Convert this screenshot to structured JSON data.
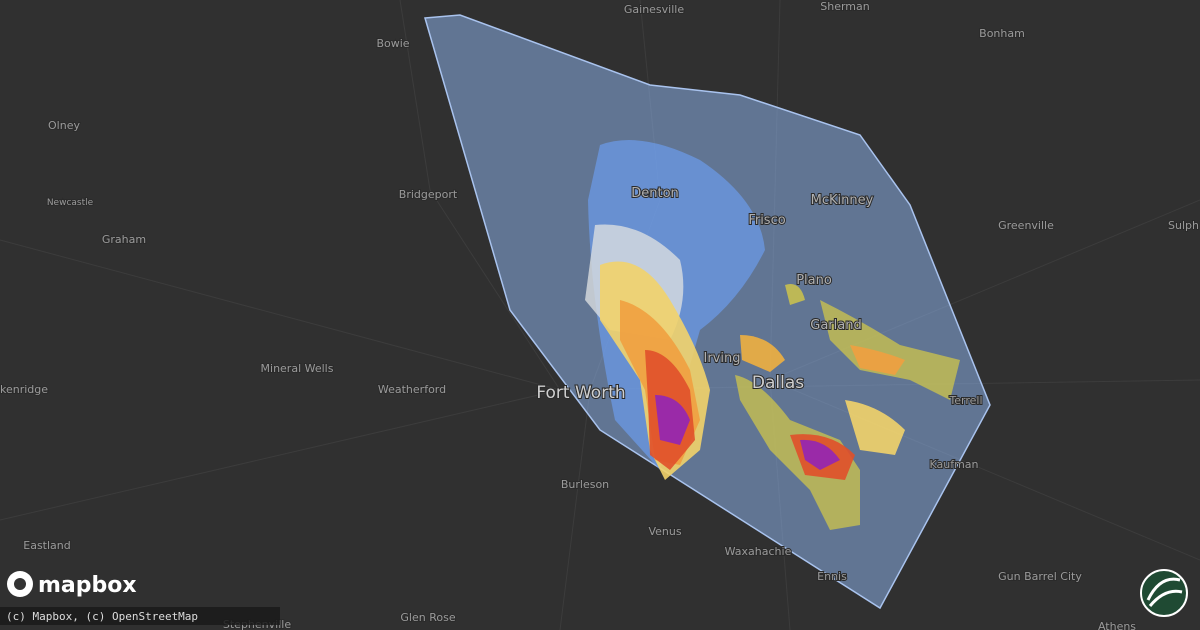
{
  "map": {
    "places": [
      "Gainesville",
      "Sherman",
      "Bonham",
      "Bowie",
      "Olney",
      "Bridgeport",
      "Denton",
      "Frisco",
      "McKinney",
      "Greenville",
      "Sulph",
      "Newcastle",
      "Graham",
      "Plano",
      "Garland",
      "Irving",
      "Dallas",
      "Fort Worth",
      "Mineral Wells",
      "Weatherford",
      "kenridge",
      "Terrell",
      "Kaufman",
      "Burleson",
      "Venus",
      "Waxahachie",
      "Eastland",
      "Ennis",
      "Gun Barrel City",
      "Glen Rose",
      "Stephenville",
      "Athens"
    ],
    "logo": "mapbox",
    "attribution": "(c) Mapbox, (c) OpenStreetMap"
  }
}
